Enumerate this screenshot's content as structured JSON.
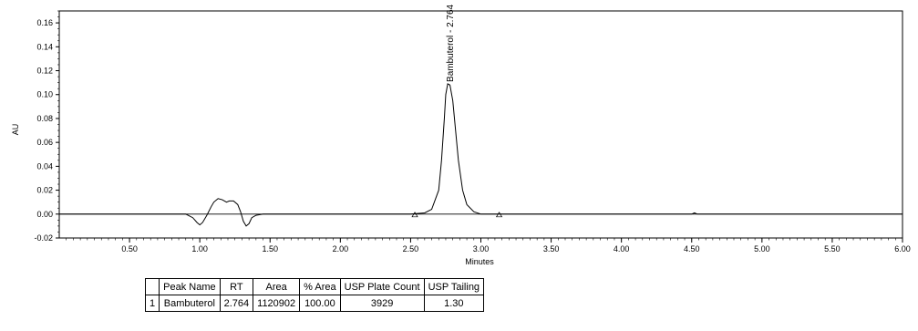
{
  "chart_data": {
    "type": "line",
    "xlabel": "Minutes",
    "ylabel": "AU",
    "xlim": [
      0,
      6
    ],
    "ylim": [
      -0.02,
      0.17
    ],
    "x_ticks": [
      "0.50",
      "1.00",
      "1.50",
      "2.00",
      "2.50",
      "3.00",
      "3.50",
      "4.00",
      "4.50",
      "5.00",
      "5.50",
      "6.00"
    ],
    "y_ticks": [
      "-0.02",
      "0.00",
      "0.02",
      "0.04",
      "0.06",
      "0.08",
      "0.10",
      "0.12",
      "0.14",
      "0.16"
    ],
    "grid": false,
    "series": [
      {
        "x": [
          0.0,
          0.5,
          0.9,
          0.95,
          0.98,
          1.0,
          1.02,
          1.05,
          1.08,
          1.1,
          1.13,
          1.16,
          1.19,
          1.21,
          1.24,
          1.27,
          1.29,
          1.31,
          1.33,
          1.35,
          1.37,
          1.4,
          1.45,
          1.5,
          2.0,
          2.5,
          2.6,
          2.65,
          2.7,
          2.72,
          2.74,
          2.75,
          2.764,
          2.78,
          2.8,
          2.82,
          2.84,
          2.87,
          2.9,
          2.95,
          3.0,
          3.1,
          3.5,
          4.0,
          4.5,
          4.52,
          4.54,
          5.0,
          5.5,
          6.0
        ],
        "y": [
          0.0,
          0.0,
          0.0,
          -0.003,
          -0.007,
          -0.009,
          -0.007,
          -0.001,
          0.006,
          0.01,
          0.013,
          0.012,
          0.01,
          0.011,
          0.011,
          0.008,
          0.002,
          -0.006,
          -0.01,
          -0.008,
          -0.003,
          -0.001,
          0.0,
          0.0,
          0.0,
          0.0,
          0.001,
          0.004,
          0.02,
          0.045,
          0.08,
          0.1,
          0.109,
          0.108,
          0.095,
          0.07,
          0.045,
          0.02,
          0.008,
          0.002,
          0.0,
          0.0,
          0.0,
          0.0,
          0.0,
          0.001,
          0.0,
          0.0,
          0.0,
          0.0
        ]
      }
    ],
    "peak_label": "Bambuterol - 2.764",
    "baseline_markers_x": [
      2.53,
      3.13
    ]
  },
  "table": {
    "headers": [
      "",
      "Peak Name",
      "RT",
      "Area",
      "% Area",
      "USP Plate Count",
      "USP Tailing"
    ],
    "rows": [
      [
        "1",
        "Bambuterol",
        "2.764",
        "1120902",
        "100.00",
        "3929",
        "1.30"
      ]
    ]
  }
}
